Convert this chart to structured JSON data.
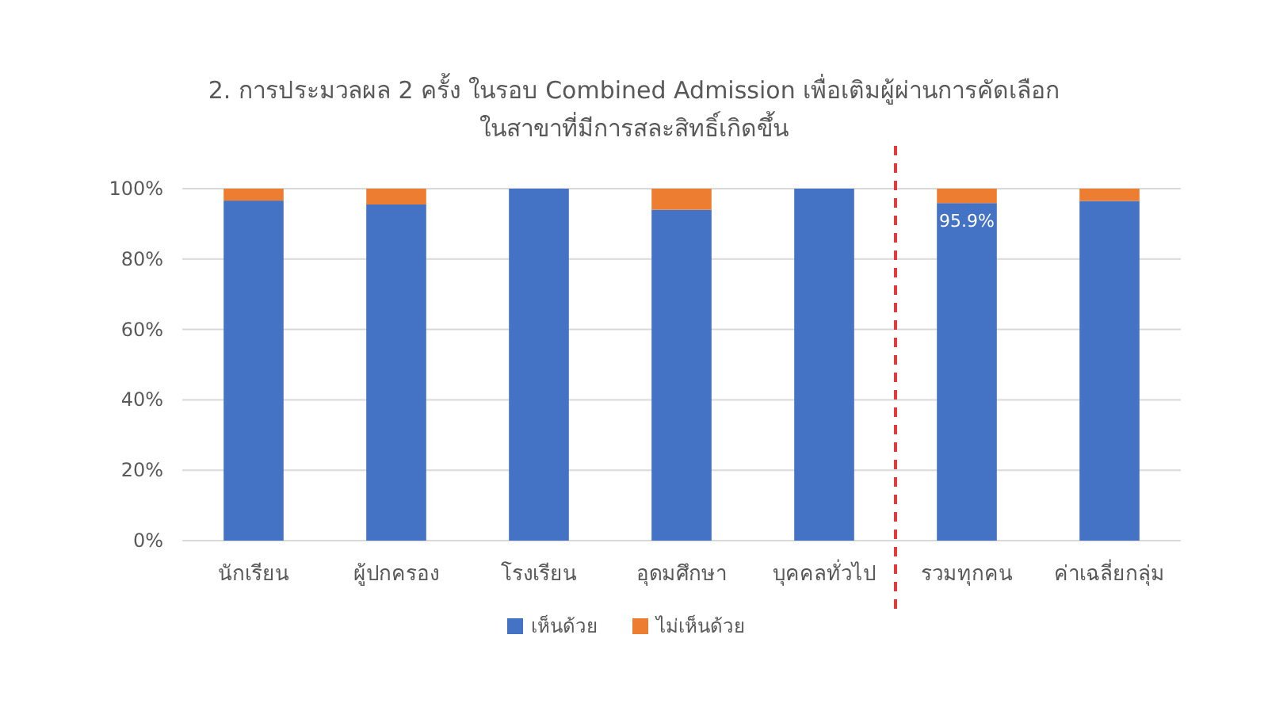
{
  "chart_data": {
    "type": "bar",
    "title": "2. การประมวลผล 2 ครั้ง ในรอบ Combined Admission เพื่อเติมผู้ผ่านการคัดเลือก\nในสาขาที่มีการสละสิทธิ์เกิดขึ้น",
    "categories": [
      "นักเรียน",
      "ผู้ปกครอง",
      "โรงเรียน",
      "อุดมศึกษา",
      "บุคคลทั่วไป",
      "รวมทุกคน",
      "ค่าเฉลี่ยกลุ่ม"
    ],
    "stacked": true,
    "series": [
      {
        "name": "เห็นด้วย",
        "color": "#4472c4",
        "values": [
          96.6,
          95.5,
          100,
          94.0,
          100,
          95.9,
          96.5
        ],
        "value_labels": [
          null,
          null,
          null,
          null,
          null,
          "95.9%",
          null
        ]
      },
      {
        "name": "ไม่เห็นด้วย",
        "color": "#ed7d31",
        "values": [
          3.4,
          4.5,
          0,
          6.0,
          0,
          4.1,
          3.5
        ]
      }
    ],
    "ylim": [
      0,
      100
    ],
    "yticks": [
      {
        "value": 0,
        "label": "0%"
      },
      {
        "value": 20,
        "label": "20%"
      },
      {
        "value": 40,
        "label": "40%"
      },
      {
        "value": 60,
        "label": "60%"
      },
      {
        "value": 80,
        "label": "80%"
      },
      {
        "value": 100,
        "label": "100%"
      }
    ],
    "grid": "y",
    "legend": "bottom"
  }
}
